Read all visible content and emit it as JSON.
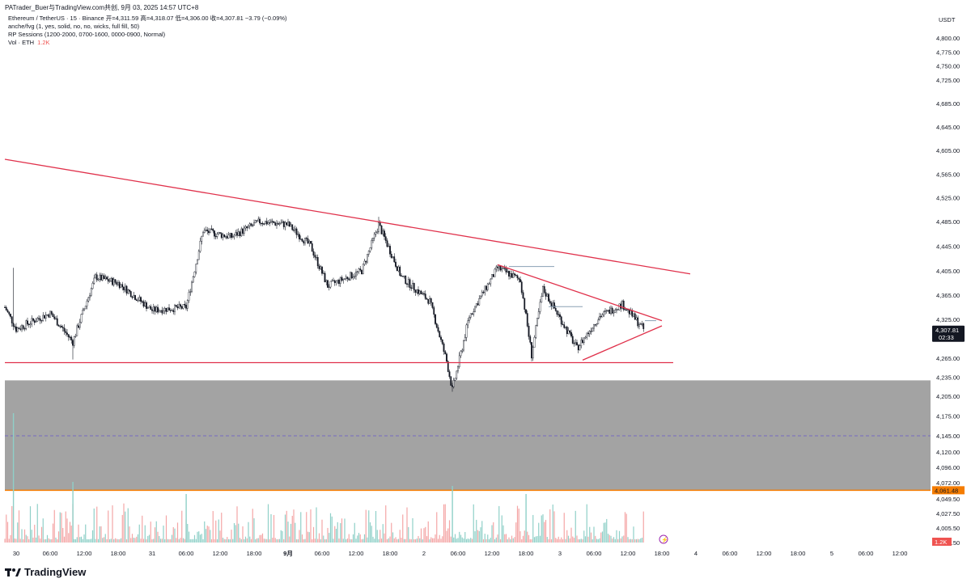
{
  "header": {
    "share_line": "PATrader_Buer与TradingView.com共创, 9月 03, 2025 14:57 UTC+8"
  },
  "legend": {
    "main": "Ethereum / TetherUS · 15 · Binance  开=4,311.59  高=4,318.07  低=4,306.00  收=4,307.81  −3.79 (−0.09%)",
    "fvg": "anche/fvg (1, yes, solid, no, no, wicks, full fill, 50)",
    "sessions": "RP Sessions (1200-2000, 0700-1600, 0000-0900, Normal)",
    "vol_label": "Vol · ETH",
    "vol_value": "1.2K"
  },
  "currency": "USDT",
  "footer": {
    "brand": "TradingView"
  },
  "price_axis": {
    "labels": [
      "4,800.00",
      "4,775.00",
      "4,750.00",
      "4,725.00",
      "4,685.00",
      "4,645.00",
      "4,605.00",
      "4,565.00",
      "4,525.00",
      "4,485.00",
      "4,445.00",
      "4,405.00",
      "4,365.00",
      "4,325.00",
      "4,265.00",
      "4,235.00",
      "4,205.00",
      "4,175.00",
      "4,145.00",
      "4,120.00",
      "4,096.00",
      "4,072.00",
      "4,049.50",
      "4,027.50",
      "4,005.50",
      "3,983.50"
    ]
  },
  "time_axis": {
    "labels": [
      "30",
      "06:00",
      "12:00",
      "18:00",
      "31",
      "06:00",
      "12:00",
      "18:00",
      "9月",
      "06:00",
      "12:00",
      "18:00",
      "2",
      "06:00",
      "12:00",
      "18:00",
      "3",
      "06:00",
      "12:00",
      "18:00",
      "4",
      "06:00",
      "12:00",
      "18:00",
      "5",
      "06:00",
      "12:00"
    ]
  },
  "badges": {
    "last_price": "4,307.81",
    "countdown": "02:33",
    "zone_price": "4,061.48",
    "vol_now": "1.2K"
  },
  "colors": {
    "up": "#26a69a",
    "down": "#000000",
    "trendline": "#e0314b",
    "zone": "#a3a3a3",
    "zone_edge": "#f57c00",
    "vol_up": "#8fd0c8",
    "vol_down": "#f4a6a6"
  },
  "chart_data": {
    "type": "candlestick",
    "title": "Ethereum / TetherUS · 15 · Binance",
    "ylabel": "USDT",
    "ylim": [
      3983.5,
      4800
    ],
    "x_range": [
      "Aug 29 22:00",
      "Sep 5 12:00"
    ],
    "closes_approx": [
      {
        "t": "Aug 29 22:00",
        "c": 4345
      },
      {
        "t": "Aug 30 00:00",
        "c": 4310
      },
      {
        "t": "Aug 30 06:00",
        "c": 4335
      },
      {
        "t": "Aug 30 10:00",
        "c": 4290
      },
      {
        "t": "Aug 30 14:00",
        "c": 4395
      },
      {
        "t": "Aug 30 18:00",
        "c": 4385
      },
      {
        "t": "Aug 31 00:00",
        "c": 4340
      },
      {
        "t": "Aug 31 06:00",
        "c": 4345
      },
      {
        "t": "Aug 31 09:00",
        "c": 4470
      },
      {
        "t": "Aug 31 14:00",
        "c": 4460
      },
      {
        "t": "Aug 31 19:00",
        "c": 4485
      },
      {
        "t": "Sep 1 00:00",
        "c": 4480
      },
      {
        "t": "Sep 1 04:00",
        "c": 4445
      },
      {
        "t": "Sep 1 07:00",
        "c": 4380
      },
      {
        "t": "Sep 1 13:00",
        "c": 4405
      },
      {
        "t": "Sep 1 16:00",
        "c": 4480
      },
      {
        "t": "Sep 1 20:00",
        "c": 4395
      },
      {
        "t": "Sep 2 01:00",
        "c": 4355
      },
      {
        "t": "Sep 2 04:00",
        "c": 4260
      },
      {
        "t": "Sep 2 05:00",
        "c": 4215
      },
      {
        "t": "Sep 2 08:00",
        "c": 4330
      },
      {
        "t": "Sep 2 13:00",
        "c": 4410
      },
      {
        "t": "Sep 2 17:00",
        "c": 4390
      },
      {
        "t": "Sep 2 19:00",
        "c": 4270
      },
      {
        "t": "Sep 2 21:00",
        "c": 4375
      },
      {
        "t": "Sep 3 03:00",
        "c": 4280
      },
      {
        "t": "Sep 3 07:00",
        "c": 4330
      },
      {
        "t": "Sep 3 11:00",
        "c": 4350
      },
      {
        "t": "Sep 3 14:57",
        "c": 4307.81
      }
    ],
    "lines": [
      {
        "name": "descending-resistance",
        "from": {
          "t": "Aug 29 22:00",
          "p": 4590
        },
        "to": {
          "t": "Sep 3 23:00",
          "p": 4400
        }
      },
      {
        "name": "horizontal-support",
        "from": {
          "t": "Aug 29 22:00",
          "p": 4258
        },
        "to": {
          "t": "Sep 3 20:00",
          "p": 4258
        }
      },
      {
        "name": "triangle-upper",
        "from": {
          "t": "Sep 2 13:00",
          "p": 4415
        },
        "to": {
          "t": "Sep 3 18:00",
          "p": 4323
        }
      },
      {
        "name": "triangle-lower",
        "from": {
          "t": "Sep 3 04:00",
          "p": 4262
        },
        "to": {
          "t": "Sep 3 18:00",
          "p": 4315
        }
      }
    ],
    "zone": {
      "top": 4230,
      "bottom": 4061.48,
      "mid_line": 4145
    }
  }
}
